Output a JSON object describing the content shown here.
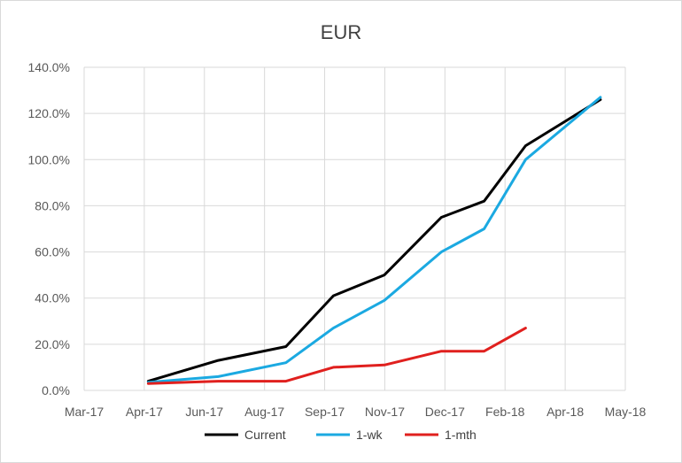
{
  "chart_data": {
    "type": "line",
    "title": "EUR",
    "xlabel": "",
    "ylabel": "",
    "x_ticks": [
      "Mar-17",
      "Apr-17",
      "Jun-17",
      "Aug-17",
      "Sep-17",
      "Nov-17",
      "Dec-17",
      "Feb-18",
      "Apr-18",
      "May-18"
    ],
    "xlim": [
      "2017-03-01",
      "2018-05-31"
    ],
    "y_ticks": [
      "0.0%",
      "20.0%",
      "40.0%",
      "60.0%",
      "80.0%",
      "100.0%",
      "120.0%",
      "140.0%"
    ],
    "ylim": [
      0,
      140
    ],
    "grid": true,
    "legend_position": "bottom",
    "series": [
      {
        "name": "Current",
        "color": "#000000",
        "points": [
          {
            "x": "2017-04-24",
            "y": 4
          },
          {
            "x": "2017-06-22",
            "y": 13
          },
          {
            "x": "2017-08-18",
            "y": 19
          },
          {
            "x": "2017-09-27",
            "y": 41
          },
          {
            "x": "2017-11-09",
            "y": 50
          },
          {
            "x": "2017-12-27",
            "y": 75
          },
          {
            "x": "2018-02-01",
            "y": 82
          },
          {
            "x": "2018-03-08",
            "y": 106
          },
          {
            "x": "2018-05-10",
            "y": 126
          }
        ]
      },
      {
        "name": "1-wk",
        "color": "#1ba9e1",
        "points": [
          {
            "x": "2017-04-24",
            "y": 3.5
          },
          {
            "x": "2017-06-22",
            "y": 6
          },
          {
            "x": "2017-08-18",
            "y": 12
          },
          {
            "x": "2017-09-27",
            "y": 27
          },
          {
            "x": "2017-11-09",
            "y": 39
          },
          {
            "x": "2017-12-27",
            "y": 60
          },
          {
            "x": "2018-02-01",
            "y": 70
          },
          {
            "x": "2018-03-08",
            "y": 100
          },
          {
            "x": "2018-05-10",
            "y": 127
          }
        ]
      },
      {
        "name": "1-mth",
        "color": "#e0201e",
        "points": [
          {
            "x": "2017-04-24",
            "y": 3
          },
          {
            "x": "2017-06-22",
            "y": 4
          },
          {
            "x": "2017-08-18",
            "y": 4
          },
          {
            "x": "2017-09-27",
            "y": 10
          },
          {
            "x": "2017-11-09",
            "y": 11
          },
          {
            "x": "2017-12-27",
            "y": 17
          },
          {
            "x": "2018-02-01",
            "y": 17
          },
          {
            "x": "2018-03-08",
            "y": 27
          }
        ]
      }
    ]
  }
}
